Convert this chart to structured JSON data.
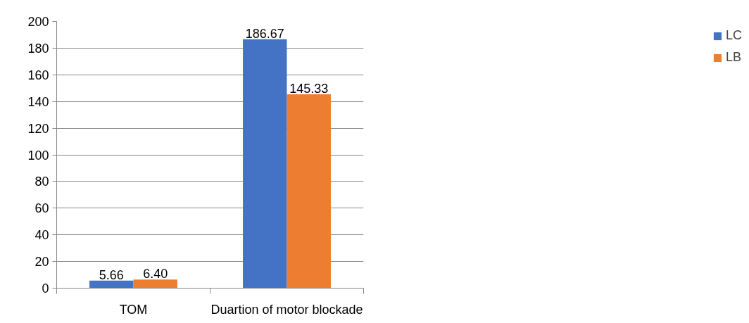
{
  "chart_data": {
    "type": "bar",
    "categories": [
      "TOM",
      "Duartion of motor blockade"
    ],
    "series": [
      {
        "name": "LC",
        "color": "#4472c4",
        "values": [
          5.66,
          186.67
        ],
        "value_labels": [
          "5.66",
          "186.67"
        ]
      },
      {
        "name": "LB",
        "color": "#ed7d31",
        "values": [
          6.4,
          145.33
        ],
        "value_labels": [
          "6.40",
          "145.33"
        ]
      }
    ],
    "ylim": [
      0,
      200
    ],
    "yticks": [
      0,
      20,
      40,
      60,
      80,
      100,
      120,
      140,
      160,
      180,
      200
    ],
    "grid": "y",
    "legend": "right"
  }
}
